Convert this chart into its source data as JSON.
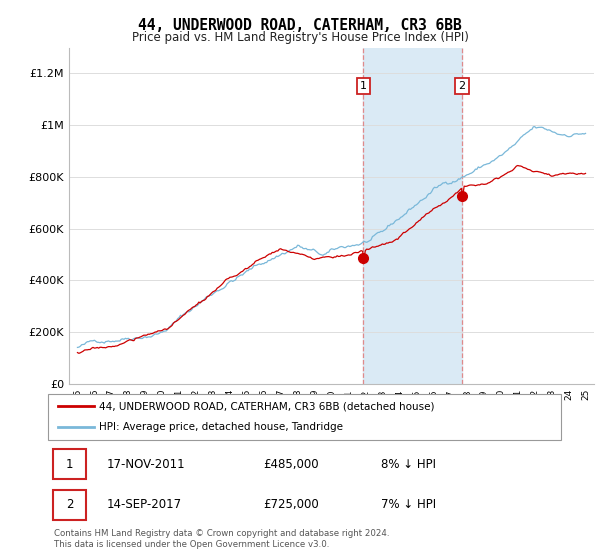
{
  "title": "44, UNDERWOOD ROAD, CATERHAM, CR3 6BB",
  "subtitle": "Price paid vs. HM Land Registry's House Price Index (HPI)",
  "ylabel_ticks": [
    "£0",
    "£200K",
    "£400K",
    "£600K",
    "£800K",
    "£1M",
    "£1.2M"
  ],
  "ytick_values": [
    0,
    200000,
    400000,
    600000,
    800000,
    1000000,
    1200000
  ],
  "ylim": [
    0,
    1300000
  ],
  "xlim_start": 1994.5,
  "xlim_end": 2025.5,
  "sale1_date": "17-NOV-2011",
  "sale1_price": "£485,000",
  "sale1_hpi": "8% ↓ HPI",
  "sale1_x": 2011.88,
  "sale1_y": 485000,
  "sale2_date": "14-SEP-2017",
  "sale2_price": "£725,000",
  "sale2_hpi": "7% ↓ HPI",
  "sale2_x": 2017.71,
  "sale2_y": 725000,
  "legend_line1": "44, UNDERWOOD ROAD, CATERHAM, CR3 6BB (detached house)",
  "legend_line2": "HPI: Average price, detached house, Tandridge",
  "footnote": "Contains HM Land Registry data © Crown copyright and database right 2024.\nThis data is licensed under the Open Government Licence v3.0.",
  "hpi_color": "#7ab8d9",
  "price_color": "#cc0000",
  "shade_color": "#daeaf5",
  "vline_color": "#e08080",
  "grid_color": "#dddddd",
  "label_box_color": "#cc2222"
}
